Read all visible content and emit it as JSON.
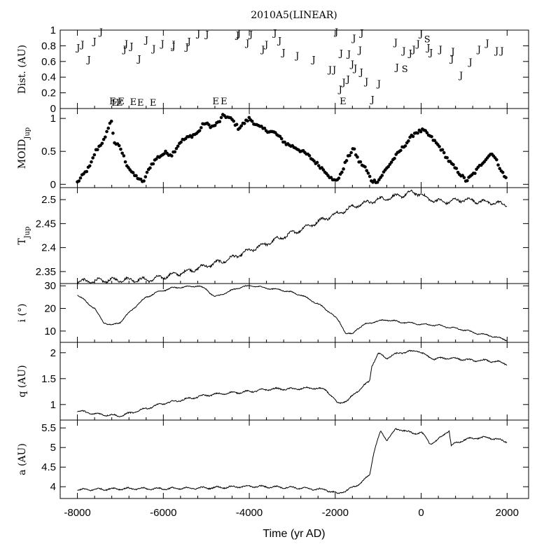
{
  "chart_data": {
    "title": "2010A5(LINEAR)",
    "xlabel": "Time (yr AD)",
    "xlim": [
      -8400,
      2500
    ],
    "xticks": [
      -8000,
      -6000,
      -4000,
      -2000,
      0,
      2000
    ],
    "xtick_labels": [
      "-8000",
      "-6000",
      "-4000",
      "-2000",
      "0",
      "2000"
    ],
    "panels": [
      {
        "id": "dist",
        "type": "scatter-text",
        "ylabel": "Dist. (AU)",
        "ylim": [
          0,
          1
        ],
        "yticks": [
          0,
          0.2,
          0.4,
          0.6,
          0.8,
          1
        ],
        "ytick_labels": [
          "0",
          "0.2",
          "0.4",
          "0.6",
          "0.8",
          "1"
        ],
        "encounters": [
          {
            "t": -7980,
            "d": 0.78,
            "b": "J"
          },
          {
            "t": -7880,
            "d": 0.82,
            "b": "J"
          },
          {
            "t": -7730,
            "d": 0.63,
            "b": "J"
          },
          {
            "t": -7600,
            "d": 0.86,
            "b": "J"
          },
          {
            "t": -7450,
            "d": 0.98,
            "b": "J"
          },
          {
            "t": -7180,
            "d": 0.1,
            "b": "E"
          },
          {
            "t": -7130,
            "d": 0.08,
            "b": "E"
          },
          {
            "t": -7020,
            "d": 0.08,
            "b": "E"
          },
          {
            "t": -6980,
            "d": 0.1,
            "b": "E"
          },
          {
            "t": -6900,
            "d": 0.76,
            "b": "J"
          },
          {
            "t": -6860,
            "d": 0.83,
            "b": "J"
          },
          {
            "t": -6740,
            "d": 0.8,
            "b": "J"
          },
          {
            "t": -6700,
            "d": 0.09,
            "b": "E"
          },
          {
            "t": -6530,
            "d": 0.08,
            "b": "E"
          },
          {
            "t": -6560,
            "d": 0.64,
            "b": "J"
          },
          {
            "t": -6390,
            "d": 0.88,
            "b": "J"
          },
          {
            "t": -6240,
            "d": 0.08,
            "b": "E"
          },
          {
            "t": -6220,
            "d": 0.77,
            "b": "J"
          },
          {
            "t": -6020,
            "d": 0.83,
            "b": "J"
          },
          {
            "t": -5760,
            "d": 0.8,
            "b": "J"
          },
          {
            "t": -5760,
            "d": 0.82,
            "b": "J"
          },
          {
            "t": -5450,
            "d": 0.79,
            "b": "J"
          },
          {
            "t": -5400,
            "d": 0.86,
            "b": "J"
          },
          {
            "t": -5180,
            "d": 0.96,
            "b": "J"
          },
          {
            "t": -4980,
            "d": 0.95,
            "b": "J"
          },
          {
            "t": -4780,
            "d": 0.1,
            "b": "E"
          },
          {
            "t": -4590,
            "d": 0.1,
            "b": "E"
          },
          {
            "t": -4270,
            "d": 0.94,
            "b": "J"
          },
          {
            "t": -4240,
            "d": 0.96,
            "b": "J"
          },
          {
            "t": -4040,
            "d": 0.84,
            "b": "J"
          },
          {
            "t": -3960,
            "d": 0.95,
            "b": "J"
          },
          {
            "t": -3680,
            "d": 0.76,
            "b": "J"
          },
          {
            "t": -3600,
            "d": 0.82,
            "b": "J"
          },
          {
            "t": -3400,
            "d": 0.97,
            "b": "J"
          },
          {
            "t": -3290,
            "d": 0.87,
            "b": "J"
          },
          {
            "t": -3200,
            "d": 0.72,
            "b": "J"
          },
          {
            "t": -2880,
            "d": 0.68,
            "b": "J"
          },
          {
            "t": -2500,
            "d": 0.63,
            "b": "J"
          },
          {
            "t": -2120,
            "d": 0.5,
            "b": "J"
          },
          {
            "t": -2020,
            "d": 0.5,
            "b": "J"
          },
          {
            "t": -1970,
            "d": 0.98,
            "b": "J"
          },
          {
            "t": -1880,
            "d": 0.25,
            "b": "J"
          },
          {
            "t": -1860,
            "d": 0.71,
            "b": "J"
          },
          {
            "t": -1820,
            "d": 0.1,
            "b": "E"
          },
          {
            "t": -1800,
            "d": 0.34,
            "b": "J"
          },
          {
            "t": -1700,
            "d": 0.38,
            "b": "J"
          },
          {
            "t": -1680,
            "d": 0.7,
            "b": "J"
          },
          {
            "t": -1600,
            "d": 0.57,
            "b": "J"
          },
          {
            "t": -1560,
            "d": 0.9,
            "b": "J"
          },
          {
            "t": -1530,
            "d": 0.52,
            "b": "J"
          },
          {
            "t": -1420,
            "d": 0.75,
            "b": "J"
          },
          {
            "t": -1380,
            "d": 0.97,
            "b": "J"
          },
          {
            "t": -1390,
            "d": 0.47,
            "b": "J"
          },
          {
            "t": -1270,
            "d": 0.35,
            "b": "J"
          },
          {
            "t": -1130,
            "d": 0.12,
            "b": "J"
          },
          {
            "t": -980,
            "d": 0.32,
            "b": "J"
          },
          {
            "t": -590,
            "d": 0.85,
            "b": "J"
          },
          {
            "t": -560,
            "d": 0.53,
            "b": "J"
          },
          {
            "t": -400,
            "d": 0.74,
            "b": "J"
          },
          {
            "t": -380,
            "d": 0.51,
            "b": "S"
          },
          {
            "t": -250,
            "d": 0.71,
            "b": "J"
          },
          {
            "t": -170,
            "d": 0.76,
            "b": "J"
          },
          {
            "t": -70,
            "d": 0.83,
            "b": "J"
          },
          {
            "t": 0,
            "d": 0.96,
            "b": "J"
          },
          {
            "t": 140,
            "d": 0.89,
            "b": "S"
          },
          {
            "t": 170,
            "d": 0.78,
            "b": "J"
          },
          {
            "t": 230,
            "d": 0.72,
            "b": "J"
          },
          {
            "t": 450,
            "d": 0.76,
            "b": "J"
          },
          {
            "t": 720,
            "d": 0.64,
            "b": "J"
          },
          {
            "t": 740,
            "d": 0.73,
            "b": "J"
          },
          {
            "t": 930,
            "d": 0.43,
            "b": "J"
          },
          {
            "t": 1150,
            "d": 0.6,
            "b": "J"
          },
          {
            "t": 1350,
            "d": 0.76,
            "b": "J"
          },
          {
            "t": 1540,
            "d": 0.84,
            "b": "J"
          },
          {
            "t": 1760,
            "d": 0.74,
            "b": "J"
          },
          {
            "t": 1880,
            "d": 0.74,
            "b": "J"
          }
        ]
      },
      {
        "id": "moid",
        "type": "scatter",
        "ylabel_main": "MOID",
        "ylabel_sub": "Jup",
        "ylim": [
          -0.05,
          1.15
        ],
        "yticks": [
          0,
          0.5,
          1
        ],
        "ytick_labels": [
          "0",
          "0.5",
          "1"
        ],
        "keypoints": [
          [
            -8000,
            0.03
          ],
          [
            -7700,
            0.28
          ],
          [
            -7580,
            0.5
          ],
          [
            -7350,
            0.7
          ],
          [
            -7260,
            0.92
          ],
          [
            -7200,
            0.95
          ],
          [
            -7150,
            0.65
          ],
          [
            -7000,
            0.55
          ],
          [
            -6850,
            0.3
          ],
          [
            -6700,
            0.15
          ],
          [
            -6550,
            0.08
          ],
          [
            -6480,
            0.02
          ],
          [
            -6300,
            0.28
          ],
          [
            -6150,
            0.4
          ],
          [
            -5950,
            0.48
          ],
          [
            -5800,
            0.45
          ],
          [
            -5600,
            0.65
          ],
          [
            -5400,
            0.72
          ],
          [
            -5200,
            0.78
          ],
          [
            -5050,
            0.93
          ],
          [
            -4850,
            0.87
          ],
          [
            -4700,
            0.95
          ],
          [
            -4600,
            1.05
          ],
          [
            -4400,
            0.98
          ],
          [
            -4250,
            0.85
          ],
          [
            -4000,
            1.0
          ],
          [
            -3800,
            0.88
          ],
          [
            -3600,
            0.82
          ],
          [
            -3400,
            0.78
          ],
          [
            -3150,
            0.62
          ],
          [
            -2900,
            0.55
          ],
          [
            -2650,
            0.45
          ],
          [
            -2400,
            0.3
          ],
          [
            -2200,
            0.18
          ],
          [
            -2050,
            0.05
          ],
          [
            -1900,
            0.1
          ],
          [
            -1750,
            0.35
          ],
          [
            -1580,
            0.55
          ],
          [
            -1450,
            0.35
          ],
          [
            -1300,
            0.25
          ],
          [
            -1150,
            0.05
          ],
          [
            -1000,
            0.05
          ],
          [
            -850,
            0.2
          ],
          [
            -600,
            0.42
          ],
          [
            -350,
            0.62
          ],
          [
            -150,
            0.78
          ],
          [
            50,
            0.82
          ],
          [
            250,
            0.7
          ],
          [
            450,
            0.55
          ],
          [
            650,
            0.35
          ],
          [
            850,
            0.2
          ],
          [
            1050,
            0.05
          ],
          [
            1250,
            0.18
          ],
          [
            1450,
            0.35
          ],
          [
            1650,
            0.48
          ],
          [
            1800,
            0.3
          ],
          [
            1950,
            0.1
          ],
          [
            2000,
            0.09
          ]
        ]
      },
      {
        "id": "tjup",
        "type": "line",
        "ylabel_main": "T",
        "ylabel_sub": "Jup",
        "ylim": [
          2.325,
          2.525
        ],
        "yticks": [
          2.35,
          2.4,
          2.45,
          2.5
        ],
        "ytick_labels": [
          "2.35",
          "2.4",
          "2.45",
          "2.5"
        ],
        "keypoints": [
          [
            -8000,
            2.329
          ],
          [
            -7000,
            2.333
          ],
          [
            -6300,
            2.333
          ],
          [
            -5500,
            2.349
          ],
          [
            -4500,
            2.375
          ],
          [
            -3800,
            2.401
          ],
          [
            -3000,
            2.43
          ],
          [
            -2200,
            2.462
          ],
          [
            -1500,
            2.488
          ],
          [
            -1000,
            2.5
          ],
          [
            -500,
            2.508
          ],
          [
            -200,
            2.515
          ],
          [
            0,
            2.512
          ],
          [
            100,
            2.503
          ],
          [
            500,
            2.495
          ],
          [
            1000,
            2.5
          ],
          [
            1500,
            2.495
          ],
          [
            2000,
            2.49
          ]
        ]
      },
      {
        "id": "incl",
        "type": "line",
        "ylabel": "i (°)",
        "ylim": [
          5,
          31
        ],
        "yticks": [
          10,
          20,
          30
        ],
        "ytick_labels": [
          "10",
          "20",
          "30"
        ],
        "keypoints": [
          [
            -8000,
            26
          ],
          [
            -7600,
            20
          ],
          [
            -7400,
            14
          ],
          [
            -7200,
            12.5
          ],
          [
            -7000,
            14
          ],
          [
            -6700,
            20
          ],
          [
            -6400,
            25
          ],
          [
            -6100,
            27.5
          ],
          [
            -5800,
            29
          ],
          [
            -5500,
            29.5
          ],
          [
            -5200,
            30
          ],
          [
            -5000,
            28.5
          ],
          [
            -4800,
            25
          ],
          [
            -4600,
            26.5
          ],
          [
            -4400,
            28
          ],
          [
            -4200,
            29.5
          ],
          [
            -3900,
            30
          ],
          [
            -3600,
            29
          ],
          [
            -3200,
            28
          ],
          [
            -2800,
            26
          ],
          [
            -2400,
            22
          ],
          [
            -2100,
            18
          ],
          [
            -1900,
            14
          ],
          [
            -1750,
            9
          ],
          [
            -1600,
            8.5
          ],
          [
            -1500,
            11
          ],
          [
            -1300,
            13
          ],
          [
            -1100,
            14
          ],
          [
            -800,
            15
          ],
          [
            -500,
            14
          ],
          [
            -200,
            13.5
          ],
          [
            0,
            13
          ],
          [
            400,
            12.5
          ],
          [
            700,
            11.5
          ],
          [
            1000,
            10.5
          ],
          [
            1300,
            9
          ],
          [
            1600,
            8
          ],
          [
            1800,
            7
          ],
          [
            2000,
            6
          ]
        ]
      },
      {
        "id": "q",
        "type": "line",
        "ylabel": "q (AU)",
        "ylim": [
          0.7,
          2.2
        ],
        "yticks": [
          1,
          1.5,
          2
        ],
        "ytick_labels": [
          "1",
          "1.5",
          "2"
        ],
        "keypoints": [
          [
            -8000,
            0.88
          ],
          [
            -7600,
            0.82
          ],
          [
            -7000,
            0.78
          ],
          [
            -6500,
            0.9
          ],
          [
            -6000,
            1.02
          ],
          [
            -5500,
            1.1
          ],
          [
            -5000,
            1.18
          ],
          [
            -4500,
            1.22
          ],
          [
            -4000,
            1.25
          ],
          [
            -3500,
            1.3
          ],
          [
            -3000,
            1.3
          ],
          [
            -2500,
            1.32
          ],
          [
            -2200,
            1.28
          ],
          [
            -1950,
            1.02
          ],
          [
            -1700,
            1.08
          ],
          [
            -1500,
            1.25
          ],
          [
            -1200,
            1.45
          ],
          [
            -1150,
            1.75
          ],
          [
            -1000,
            1.98
          ],
          [
            -800,
            1.9
          ],
          [
            -500,
            2.0
          ],
          [
            -250,
            2.02
          ],
          [
            -100,
            2.05
          ],
          [
            100,
            1.95
          ],
          [
            300,
            1.88
          ],
          [
            600,
            1.9
          ],
          [
            900,
            1.88
          ],
          [
            1200,
            1.85
          ],
          [
            1500,
            1.85
          ],
          [
            1800,
            1.82
          ],
          [
            2000,
            1.78
          ]
        ]
      },
      {
        "id": "a",
        "type": "line",
        "ylabel": "a (AU)",
        "ylim": [
          3.7,
          5.7
        ],
        "yticks": [
          4,
          4.5,
          5,
          5.5
        ],
        "ytick_labels": [
          "4",
          "4.5",
          "5",
          "5.5"
        ],
        "keypoints": [
          [
            -8000,
            3.92
          ],
          [
            -7000,
            3.95
          ],
          [
            -6000,
            3.95
          ],
          [
            -5000,
            3.97
          ],
          [
            -4000,
            4.01
          ],
          [
            -3000,
            3.98
          ],
          [
            -2200,
            3.92
          ],
          [
            -1950,
            3.82
          ],
          [
            -1700,
            3.92
          ],
          [
            -1400,
            4.1
          ],
          [
            -1200,
            4.3
          ],
          [
            -1100,
            4.9
          ],
          [
            -950,
            5.4
          ],
          [
            -800,
            5.2
          ],
          [
            -600,
            5.45
          ],
          [
            -400,
            5.45
          ],
          [
            -200,
            5.35
          ],
          [
            0,
            5.4
          ],
          [
            200,
            5.1
          ],
          [
            400,
            5.2
          ],
          [
            650,
            5.45
          ],
          [
            700,
            5.05
          ],
          [
            1000,
            5.2
          ],
          [
            1300,
            5.25
          ],
          [
            1600,
            5.25
          ],
          [
            2000,
            5.15
          ]
        ]
      }
    ]
  }
}
